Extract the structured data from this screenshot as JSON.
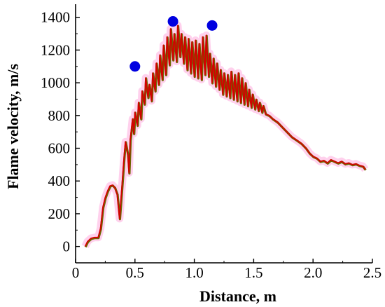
{
  "chart_data": {
    "type": "line",
    "title": "",
    "xlabel": "Distance, m",
    "ylabel": "Flame velocity, m/s",
    "xlim": [
      0,
      2.5
    ],
    "ylim": [
      -100,
      1480
    ],
    "x_ticks": [
      0,
      0.5,
      1.0,
      1.5,
      2.0,
      2.5
    ],
    "x_tick_labels": [
      "0",
      "0.5",
      "1.0",
      "1.5",
      "2.0",
      "2.5"
    ],
    "y_ticks": [
      0,
      200,
      400,
      600,
      800,
      1000,
      1200,
      1400
    ],
    "y_tick_labels": [
      "0",
      "200",
      "400",
      "600",
      "800",
      "1000",
      "1200",
      "1400"
    ],
    "grid": false,
    "legend": "none",
    "series": [
      {
        "name": "",
        "color": "#d40000",
        "shadow_color": "#6b6b00",
        "x": [
          0.08,
          0.1,
          0.13,
          0.16,
          0.19,
          0.21,
          0.23,
          0.25,
          0.27,
          0.29,
          0.31,
          0.33,
          0.35,
          0.37,
          0.39,
          0.41,
          0.42,
          0.44,
          0.45,
          0.46,
          0.48,
          0.49,
          0.5,
          0.52,
          0.53,
          0.55,
          0.56,
          0.58,
          0.59,
          0.61,
          0.62,
          0.64,
          0.65,
          0.67,
          0.68,
          0.7,
          0.71,
          0.73,
          0.74,
          0.76,
          0.77,
          0.79,
          0.8,
          0.82,
          0.83,
          0.85,
          0.86,
          0.88,
          0.89,
          0.91,
          0.92,
          0.94,
          0.95,
          0.97,
          0.98,
          1.0,
          1.01,
          1.03,
          1.04,
          1.06,
          1.07,
          1.09,
          1.1,
          1.12,
          1.13,
          1.15,
          1.16,
          1.18,
          1.19,
          1.21,
          1.22,
          1.24,
          1.25,
          1.27,
          1.28,
          1.3,
          1.31,
          1.33,
          1.34,
          1.36,
          1.37,
          1.39,
          1.4,
          1.42,
          1.43,
          1.45,
          1.46,
          1.48,
          1.49,
          1.51,
          1.52,
          1.54,
          1.55,
          1.57,
          1.58,
          1.6,
          1.63,
          1.66,
          1.7,
          1.74,
          1.78,
          1.82,
          1.86,
          1.9,
          1.94,
          1.97,
          2.0,
          2.03,
          2.06,
          2.09,
          2.12,
          2.15,
          2.18,
          2.21,
          2.24,
          2.27,
          2.3,
          2.33,
          2.36,
          2.39,
          2.42,
          2.44
        ],
        "values": [
          0,
          30,
          50,
          55,
          55,
          110,
          240,
          300,
          340,
          370,
          375,
          360,
          320,
          170,
          360,
          560,
          640,
          560,
          450,
          650,
          780,
          690,
          820,
          740,
          880,
          780,
          950,
          870,
          1030,
          910,
          990,
          890,
          1060,
          950,
          1120,
          990,
          1170,
          1020,
          1230,
          1050,
          1280,
          1110,
          1330,
          1140,
          1300,
          1130,
          1350,
          1160,
          1300,
          1120,
          1280,
          1080,
          1270,
          1060,
          1250,
          1040,
          1260,
          1030,
          1240,
          1020,
          1280,
          1050,
          1290,
          1040,
          1180,
          1000,
          1150,
          980,
          1120,
          960,
          1080,
          930,
          1060,
          920,
          1050,
          910,
          1070,
          900,
          1050,
          890,
          1060,
          880,
          1030,
          870,
          1000,
          860,
          960,
          850,
          930,
          840,
          900,
          830,
          880,
          820,
          860,
          810,
          800,
          780,
          760,
          730,
          700,
          670,
          650,
          630,
          600,
          570,
          550,
          540,
          520,
          525,
          510,
          530,
          520,
          510,
          520,
          505,
          510,
          500,
          505,
          495,
          490,
          470
        ]
      },
      {
        "name": "",
        "type": "scatter",
        "color": "#0000e0",
        "x": [
          0.5,
          0.82,
          1.15
        ],
        "values": [
          1100,
          1375,
          1350
        ]
      }
    ]
  }
}
